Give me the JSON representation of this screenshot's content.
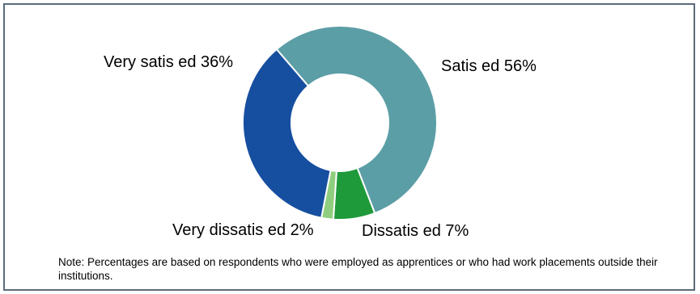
{
  "chart_data": {
    "type": "pie",
    "donut": true,
    "slices": [
      {
        "label": "Satis ed 56%",
        "category": "Satisfied",
        "value": 56,
        "color": "#5b9ea6"
      },
      {
        "label": "Dissatis ed 7%",
        "category": "Dissatisfied",
        "value": 7,
        "color": "#1f9a3a"
      },
      {
        "label": "Very dissatis ed 2%",
        "category": "Very dissatisfied",
        "value": 2,
        "color": "#8fce7e"
      },
      {
        "label": "Very satis ed 36%",
        "category": "Very satisfied",
        "value": 36,
        "color": "#174fa0"
      }
    ]
  },
  "note": "Note: Percentages are based on respondents who were employed as apprentices or who had work placements outside their institutions."
}
